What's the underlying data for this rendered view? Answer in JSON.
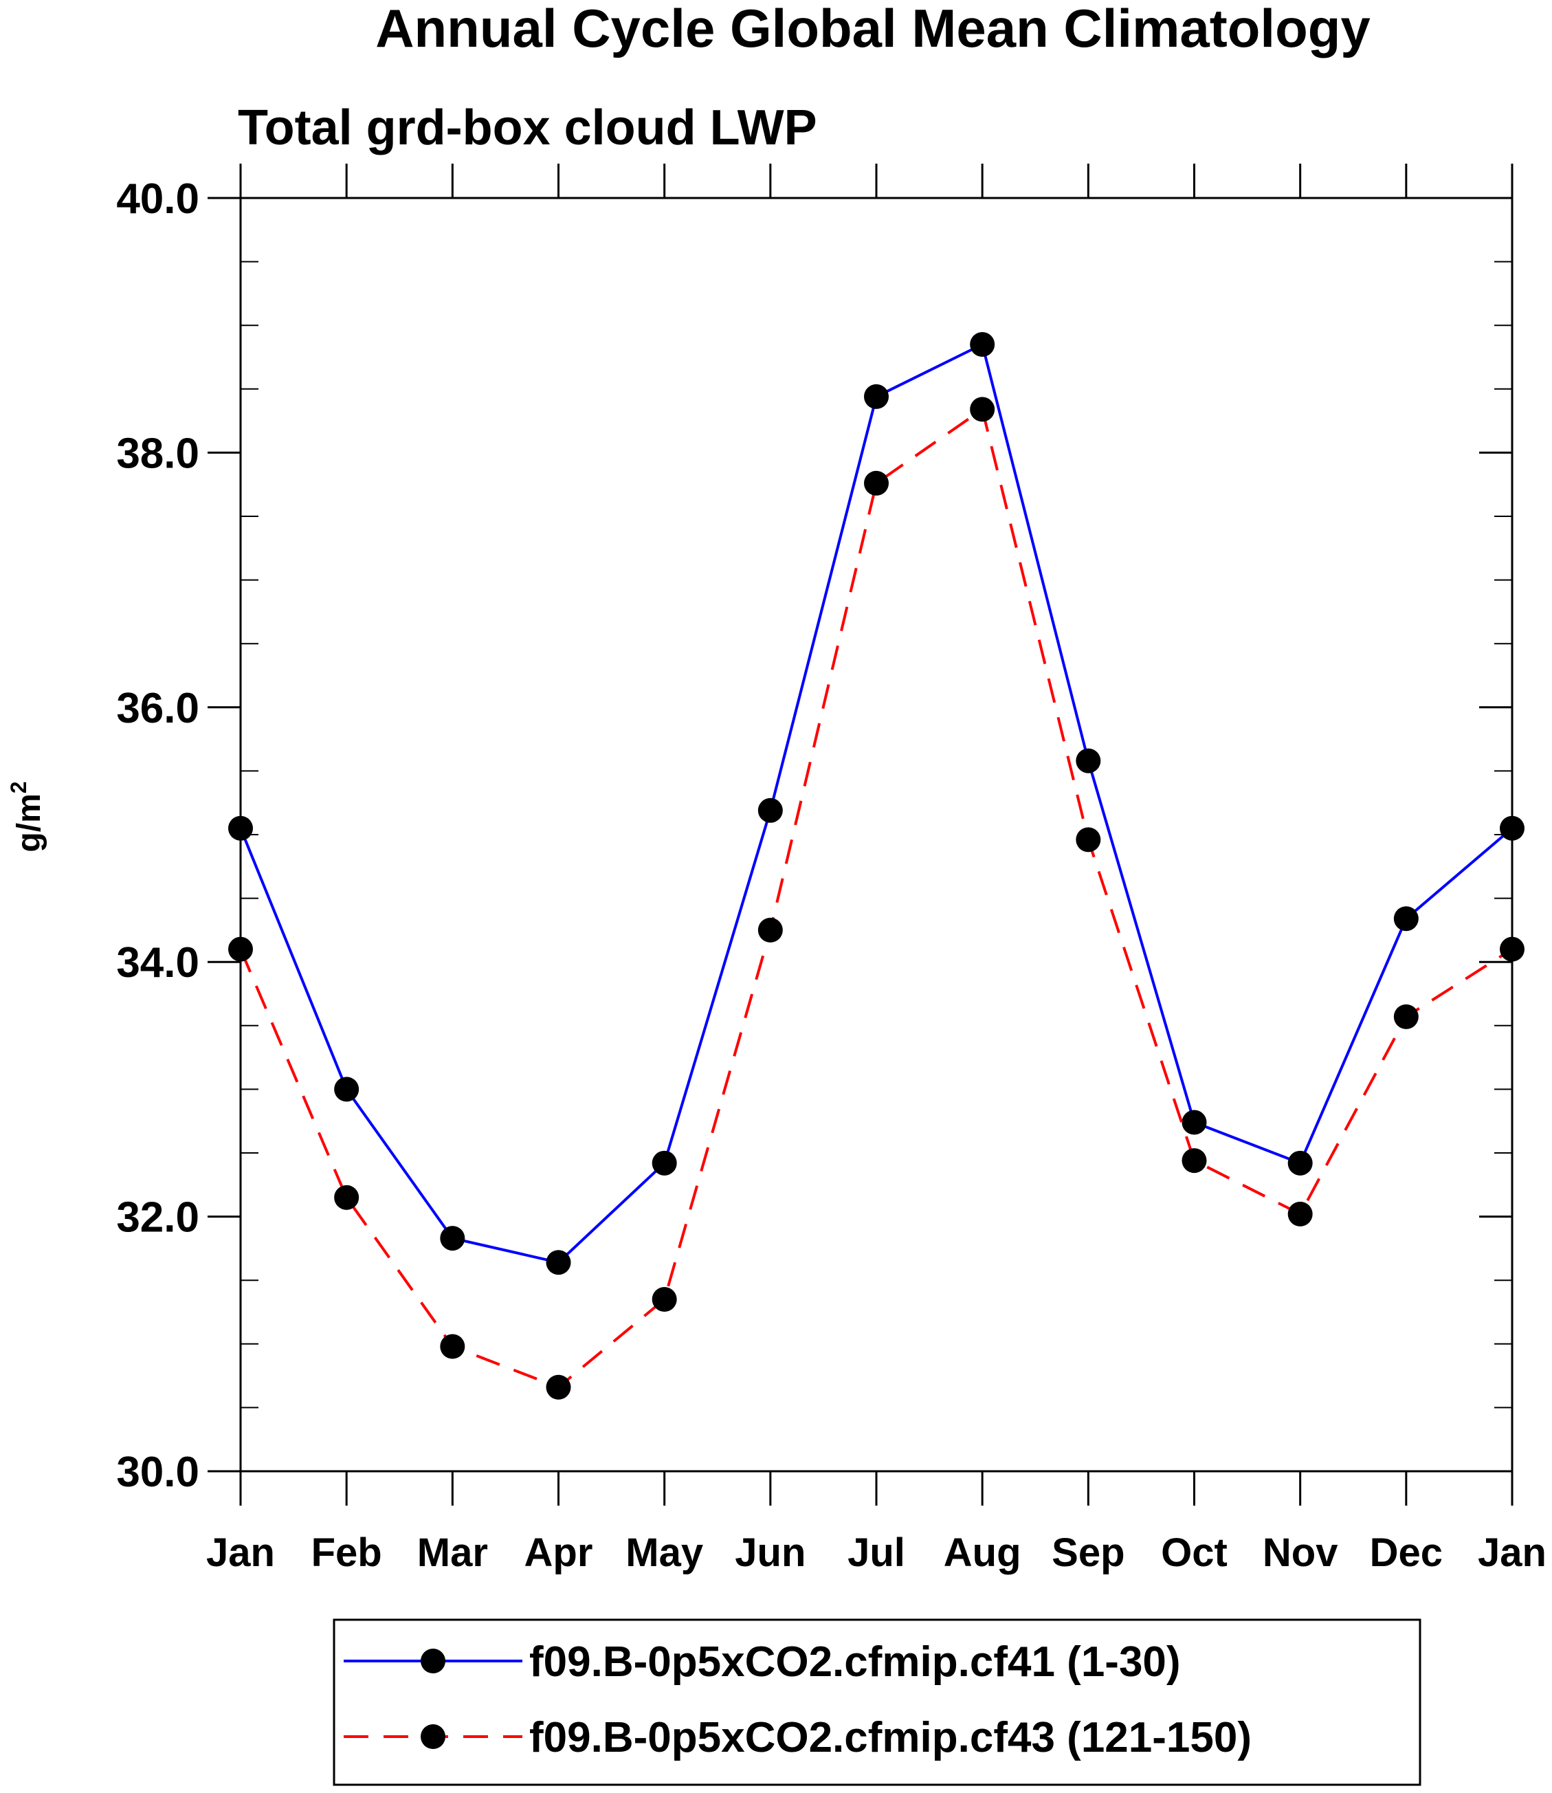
{
  "chart_data": {
    "type": "line",
    "title": "Annual Cycle Global Mean Climatology",
    "subtitle": "Total grd-box cloud LWP",
    "ylabel": "g/m",
    "ylabel_superscript": "2",
    "xlabel": "",
    "ylim": [
      30.0,
      40.0
    ],
    "yticks": [
      30.0,
      32.0,
      34.0,
      36.0,
      38.0,
      40.0
    ],
    "ytick_labels": [
      "30.0",
      "32.0",
      "34.0",
      "36.0",
      "38.0",
      "40.0"
    ],
    "categories": [
      "Jan",
      "Feb",
      "Mar",
      "Apr",
      "May",
      "Jun",
      "Jul",
      "Aug",
      "Sep",
      "Oct",
      "Nov",
      "Dec",
      "Jan"
    ],
    "series": [
      {
        "name": "f09.B-0p5xCO2.cfmip.cf41 (1-30)",
        "color": "#0000ff",
        "line_style": "solid",
        "marker_color": "#000000",
        "values": [
          35.05,
          33.0,
          31.83,
          31.64,
          32.42,
          35.19,
          38.44,
          38.85,
          35.58,
          32.74,
          32.42,
          34.34,
          35.05
        ]
      },
      {
        "name": "f09.B-0p5xCO2.cfmip.cf43 (121-150)",
        "color": "#ff0000",
        "line_style": "dashed",
        "marker_color": "#000000",
        "values": [
          34.1,
          32.15,
          30.98,
          30.66,
          31.35,
          34.25,
          37.76,
          38.34,
          34.96,
          32.44,
          32.02,
          33.57,
          34.1
        ]
      }
    ],
    "legend_position": "bottom"
  }
}
